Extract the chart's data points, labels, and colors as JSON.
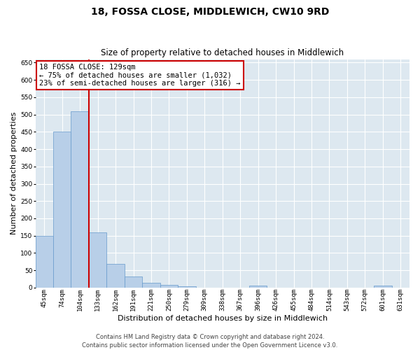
{
  "title": "18, FOSSA CLOSE, MIDDLEWICH, CW10 9RD",
  "subtitle": "Size of property relative to detached houses in Middlewich",
  "xlabel": "Distribution of detached houses by size in Middlewich",
  "ylabel": "Number of detached properties",
  "categories": [
    "45sqm",
    "74sqm",
    "104sqm",
    "133sqm",
    "162sqm",
    "191sqm",
    "221sqm",
    "250sqm",
    "279sqm",
    "309sqm",
    "338sqm",
    "367sqm",
    "396sqm",
    "426sqm",
    "455sqm",
    "484sqm",
    "514sqm",
    "543sqm",
    "572sqm",
    "601sqm",
    "631sqm"
  ],
  "values": [
    150,
    450,
    510,
    160,
    68,
    32,
    13,
    8,
    3,
    0,
    0,
    0,
    5,
    0,
    0,
    0,
    0,
    0,
    0,
    5,
    0
  ],
  "bar_color": "#b8cfe8",
  "bar_edgecolor": "#6699cc",
  "vline_index": 2.5,
  "vline_color": "#cc0000",
  "annotation_line1": "18 FOSSA CLOSE: 129sqm",
  "annotation_line2": "← 75% of detached houses are smaller (1,032)",
  "annotation_line3": "23% of semi-detached houses are larger (316) →",
  "annotation_box_color": "#ffffff",
  "annotation_box_edgecolor": "#cc0000",
  "ylim": [
    0,
    660
  ],
  "yticks": [
    0,
    50,
    100,
    150,
    200,
    250,
    300,
    350,
    400,
    450,
    500,
    550,
    600,
    650
  ],
  "background_color": "#dde8f0",
  "grid_color": "#ffffff",
  "footer_text": "Contains HM Land Registry data © Crown copyright and database right 2024.\nContains public sector information licensed under the Open Government Licence v3.0.",
  "title_fontsize": 10,
  "subtitle_fontsize": 8.5,
  "ylabel_fontsize": 8,
  "xlabel_fontsize": 8,
  "tick_fontsize": 6.5,
  "annotation_fontsize": 7.5,
  "footer_fontsize": 6
}
